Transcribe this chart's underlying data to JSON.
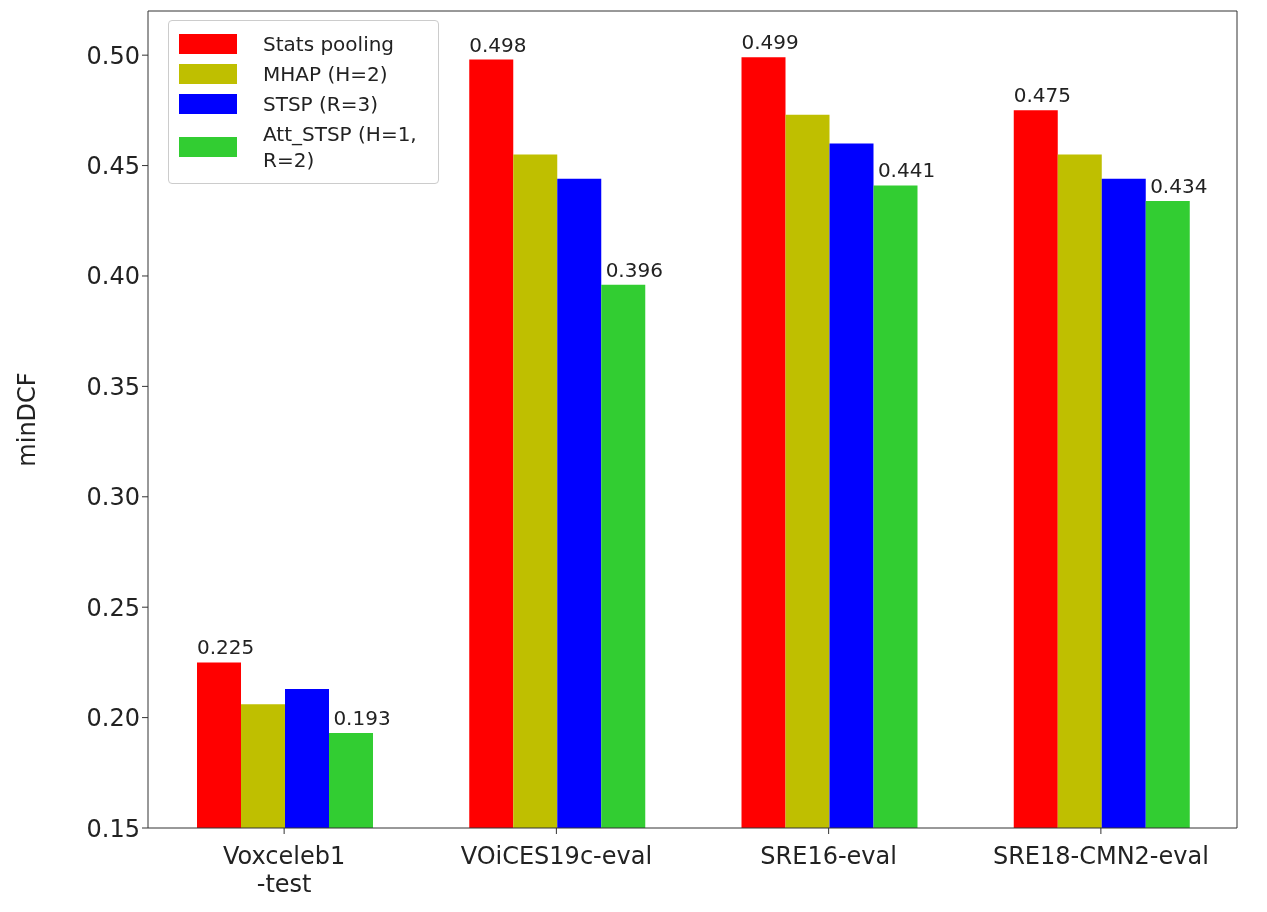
{
  "chart_data": {
    "type": "bar",
    "ylabel": "minDCF",
    "categories": [
      "Voxceleb1\n-test",
      "VOiCES19c-eval",
      "SRE16-eval",
      "SRE18-CMN2-eval"
    ],
    "series": [
      {
        "name": "Stats pooling",
        "color": "#ff0000",
        "values": [
          0.225,
          0.498,
          0.499,
          0.475
        ],
        "value_labels": [
          "0.225",
          "0.498",
          "0.499",
          "0.475"
        ]
      },
      {
        "name": "MHAP (H=2)",
        "color": "#bfbf00",
        "values": [
          0.206,
          0.455,
          0.473,
          0.455
        ]
      },
      {
        "name": "STSP (R=3)",
        "color": "#0000ff",
        "values": [
          0.213,
          0.444,
          0.46,
          0.444
        ]
      },
      {
        "name": "Att_STSP (H=1, R=2)",
        "color": "#32cd32",
        "values": [
          0.193,
          0.396,
          0.441,
          0.434
        ],
        "value_labels": [
          "0.193",
          "0.396",
          "0.441",
          "0.434"
        ]
      }
    ],
    "ylim": [
      0.15,
      0.52
    ],
    "yticks": [
      {
        "value": 0.15,
        "label": "0.15"
      },
      {
        "value": 0.2,
        "label": "0.20"
      },
      {
        "value": 0.25,
        "label": "0.25"
      },
      {
        "value": 0.3,
        "label": "0.30"
      },
      {
        "value": 0.35,
        "label": "0.35"
      },
      {
        "value": 0.4,
        "label": "0.40"
      },
      {
        "value": 0.45,
        "label": "0.45"
      },
      {
        "value": 0.5,
        "label": "0.50"
      }
    ],
    "legend": "top left",
    "grid": false
  }
}
